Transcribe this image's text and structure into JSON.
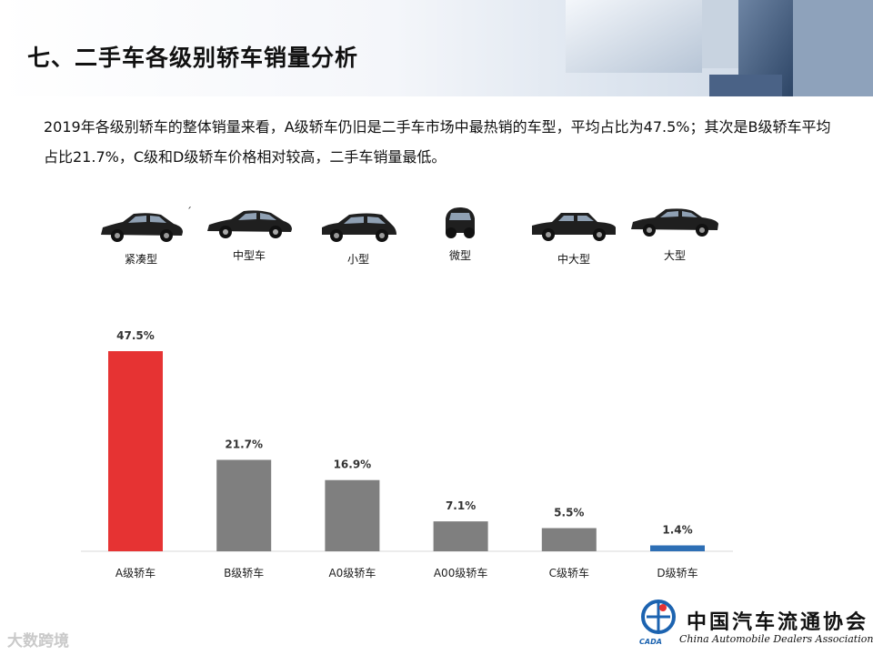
{
  "header": {
    "title": "七、二手车各级别轿车销量分析"
  },
  "intro": {
    "text": "2019年各级别轿车的整体销量来看，A级轿车仍旧是二手车市场中最热销的车型，平均占比为47.5%；其次是B级轿车平均占比21.7%，C级和D级轿车价格相对较高，二手车销量最低。"
  },
  "car_types": [
    {
      "label": "紧凑型",
      "icon": "compact-sedan-icon"
    },
    {
      "label": "中型车",
      "icon": "midsize-sedan-icon"
    },
    {
      "label": "小型",
      "icon": "small-hatchback-icon"
    },
    {
      "label": "微型",
      "icon": "micro-car-icon"
    },
    {
      "label": "中大型",
      "icon": "large-sedan-icon"
    },
    {
      "label": "大型",
      "icon": "full-size-sedan-icon"
    }
  ],
  "stray_mark": "ˊ",
  "chart_data": {
    "type": "bar",
    "categories": [
      "A级轿车",
      "B级轿车",
      "A0级轿车",
      "A00级轿车",
      "C级轿车",
      "D级轿车"
    ],
    "values": [
      47.5,
      21.7,
      16.9,
      7.1,
      5.5,
      1.4
    ],
    "value_labels": [
      "47.5%",
      "21.7%",
      "16.9%",
      "7.1%",
      "5.5%",
      "1.4%"
    ],
    "bar_colors": [
      "#e63333",
      "#7f7f7f",
      "#7f7f7f",
      "#7f7f7f",
      "#7f7f7f",
      "#2e6fb5"
    ],
    "ylim": [
      0,
      47.5
    ],
    "grid": false,
    "title": "",
    "xlabel": "",
    "ylabel": ""
  },
  "footer": {
    "watermark": "大数跨境",
    "logo_cn": "中国汽车流通协会",
    "logo_en": "China Automobile Dealers Association",
    "logo_abbr": "CADA"
  }
}
